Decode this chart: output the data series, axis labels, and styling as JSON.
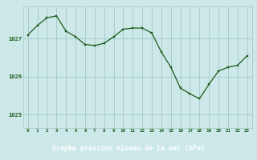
{
  "hours": [
    0,
    1,
    2,
    3,
    4,
    5,
    6,
    7,
    8,
    9,
    10,
    11,
    12,
    13,
    14,
    15,
    16,
    17,
    18,
    19,
    20,
    21,
    22,
    23
  ],
  "pressure": [
    1027.1,
    1027.35,
    1027.55,
    1027.6,
    1027.2,
    1027.05,
    1026.85,
    1026.82,
    1026.88,
    1027.05,
    1027.25,
    1027.28,
    1027.28,
    1027.15,
    1026.65,
    1026.25,
    1025.7,
    1025.55,
    1025.42,
    1025.8,
    1026.15,
    1026.25,
    1026.3,
    1026.55
  ],
  "line_color": "#1a5c1a",
  "marker_color": "#1a5c1a",
  "bg_color": "#cce8e8",
  "grid_color": "#aacccc",
  "xlabel": "Graphe pression niveau de la mer (hPa)",
  "ylabel_ticks": [
    1025,
    1026,
    1027
  ],
  "ylim": [
    1024.65,
    1027.85
  ],
  "xlim": [
    -0.5,
    23.5
  ],
  "xtick_labels": [
    "0",
    "1",
    "2",
    "3",
    "4",
    "5",
    "6",
    "7",
    "8",
    "9",
    "10",
    "11",
    "12",
    "13",
    "14",
    "15",
    "16",
    "17",
    "18",
    "19",
    "20",
    "21",
    "22",
    "23"
  ],
  "bottom_bar_color": "#336633",
  "bottom_bar_text_color": "#ffffff"
}
